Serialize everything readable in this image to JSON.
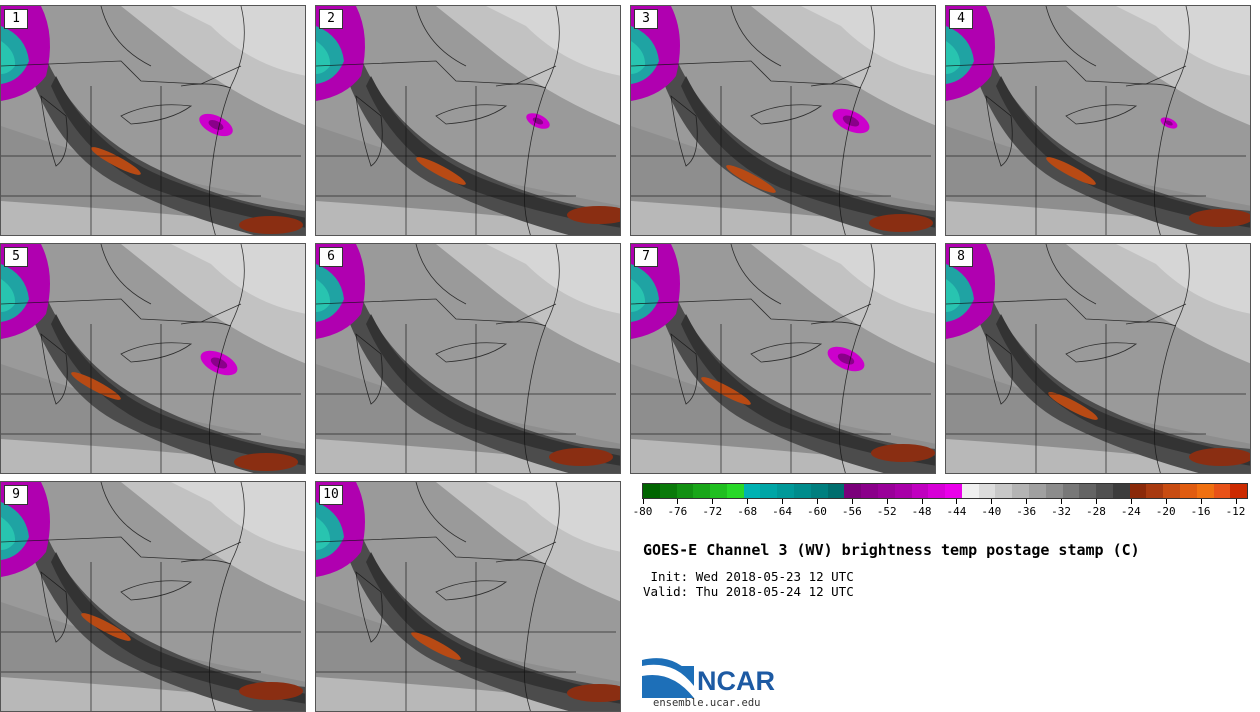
{
  "title": "GOES-E Channel 3 (WV) brightness temp postage stamp (C)",
  "init": "Wed 2018-05-23 12 UTC",
  "valid": "Thu 2018-05-24 12 UTC",
  "init_label": " Init:",
  "valid_label": "Valid:",
  "org": {
    "name": "NCAR",
    "url": "ensemble.ucar.edu"
  },
  "members": [
    "1",
    "2",
    "3",
    "4",
    "5",
    "6",
    "7",
    "8",
    "9",
    "10"
  ],
  "colorbar": {
    "ticks": [
      "-80",
      "-76",
      "-72",
      "-68",
      "-64",
      "-60",
      "-56",
      "-52",
      "-48",
      "-44",
      "-40",
      "-36",
      "-32",
      "-28",
      "-24",
      "-20",
      "-16",
      "-12"
    ],
    "colors": [
      "#006400",
      "#0a7a0a",
      "#129012",
      "#19a619",
      "#20bf20",
      "#28d828",
      "#00b2b2",
      "#00a6a6",
      "#009999",
      "#008c8c",
      "#007f7f",
      "#006e6e",
      "#7a007a",
      "#8a008a",
      "#990099",
      "#a800a8",
      "#c000c0",
      "#d600d6",
      "#ea00ea",
      "#f0f0f0",
      "#dcdcdc",
      "#c8c8c8",
      "#b4b4b4",
      "#a0a0a0",
      "#8c8c8c",
      "#787878",
      "#646464",
      "#505050",
      "#3c3c3c",
      "#8b2a0a",
      "#a83a10",
      "#c84c12",
      "#e05c10",
      "#f07010",
      "#e85218",
      "#cc2a00"
    ]
  }
}
